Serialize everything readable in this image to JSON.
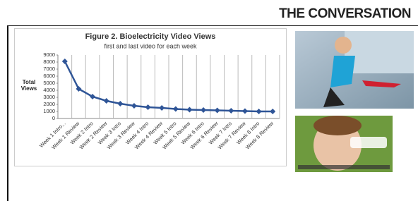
{
  "brand": "THE CONVERSATION",
  "chart_data": {
    "type": "line",
    "title": "Figure 2. Bioelectricity Video Views",
    "subtitle": "first and last video for each week",
    "y_label": "Total Views",
    "categories": [
      "Week 1 Intro...",
      "Week 1 Review",
      "Week 2 Intro",
      "Week 2 Review",
      "Week 3 Intro",
      "Week 3 Review",
      "Week 4 Intro",
      "Week 4 Review",
      "Week 5 Intro",
      "Week 5 Review",
      "Week 6 Intro",
      "Week 6 Review",
      "Week 7 Intro",
      "Week 7 Review",
      "Week 8 Intro",
      "Week 8 Review"
    ],
    "values": [
      8100,
      4200,
      3100,
      2500,
      2100,
      1800,
      1600,
      1500,
      1350,
      1250,
      1200,
      1150,
      1100,
      1050,
      1000,
      1000
    ],
    "color": "#2f5597",
    "ylim": [
      0,
      9000
    ],
    "yticks": [
      0,
      1000,
      2000,
      3000,
      4000,
      5000,
      6000,
      7000,
      8000,
      9000
    ],
    "grid": true
  }
}
